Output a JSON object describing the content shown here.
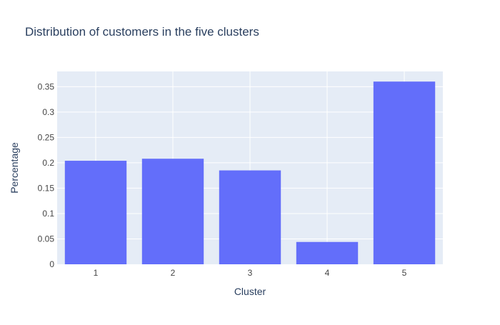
{
  "chart_data": {
    "type": "bar",
    "title": "Distribution of customers in the five clusters",
    "xlabel": "Cluster",
    "ylabel": "Percentage",
    "categories": [
      "1",
      "2",
      "3",
      "4",
      "5"
    ],
    "values": [
      0.204,
      0.208,
      0.185,
      0.044,
      0.36
    ],
    "ylim": [
      0,
      0.38
    ],
    "yticks": [
      0,
      0.05,
      0.1,
      0.15,
      0.2,
      0.25,
      0.3,
      0.35
    ],
    "ytick_labels": [
      "0",
      "0.05",
      "0.1",
      "0.15",
      "0.2",
      "0.25",
      "0.3",
      "0.35"
    ],
    "grid": true,
    "colors": {
      "bar": "#636efa",
      "plot_background": "#e5ecf6",
      "grid": "#ffffff",
      "text": "#2a3f5f",
      "tick_text": "#444444"
    }
  }
}
